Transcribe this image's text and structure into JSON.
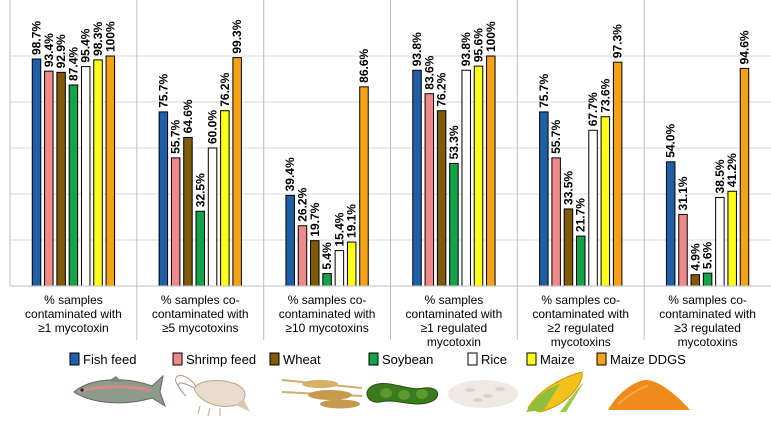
{
  "chart_data": {
    "type": "bar",
    "title": "",
    "xlabel": "",
    "ylabel": "",
    "ylim": [
      0,
      100
    ],
    "grid": true,
    "legend_position": "bottom",
    "categories": [
      [
        "% samples",
        "contaminated with",
        "≥1 mycotoxin"
      ],
      [
        "% samples co-",
        "contaminated with",
        "≥5 mycotoxins"
      ],
      [
        "% samples co-",
        "contaminated with",
        "≥10 mycotoxins"
      ],
      [
        "% samples",
        "contaminated with",
        "≥1 regulated",
        "mycotoxin"
      ],
      [
        "% samples co-",
        "contaminated with",
        "≥2 regulated",
        "mycotoxins"
      ],
      [
        "% samples co-",
        "contaminated with",
        "≥3 regulated",
        "mycotoxins"
      ]
    ],
    "series": [
      {
        "name": "Fish feed",
        "color": "#1f5fa8",
        "values": [
          98.7,
          75.7,
          39.4,
          93.8,
          75.7,
          54.0
        ],
        "labels": [
          "98.7%",
          "75.7%",
          "39.4%",
          "93.8%",
          "75.7%",
          "54.0%"
        ]
      },
      {
        "name": "Shrimp feed",
        "color": "#f08a8a",
        "values": [
          93.4,
          55.7,
          26.2,
          83.6,
          55.7,
          31.1
        ],
        "labels": [
          "93.4%",
          "55.7%",
          "26.2%",
          "83.6%",
          "55.7%",
          "31.1%"
        ]
      },
      {
        "name": "Wheat",
        "color": "#7f5a0a",
        "values": [
          92.9,
          64.6,
          19.7,
          76.2,
          33.5,
          4.9
        ],
        "labels": [
          "92.9%",
          "64.6%",
          "19.7%",
          "76.2%",
          "33.5%",
          "4.9%"
        ]
      },
      {
        "name": "Soybean",
        "color": "#15a34a",
        "values": [
          87.4,
          32.5,
          5.4,
          53.3,
          21.7,
          5.6
        ],
        "labels": [
          "87.4%",
          "32.5%",
          "5.4%",
          "53.3%",
          "21.7%",
          "5.6%"
        ]
      },
      {
        "name": "Rice",
        "color": "#ffffff",
        "values": [
          95.4,
          60.0,
          15.4,
          93.8,
          67.7,
          38.5
        ],
        "labels": [
          "95.4%",
          "60.0%",
          "15.4%",
          "93.8%",
          "67.7%",
          "38.5%"
        ]
      },
      {
        "name": "Maize",
        "color": "#ffff1a",
        "values": [
          98.3,
          76.2,
          19.1,
          95.6,
          73.6,
          41.2
        ],
        "labels": [
          "98.3%",
          "76.2%",
          "19.1%",
          "95.6%",
          "73.6%",
          "41.2%"
        ]
      },
      {
        "name": "Maize DDGS",
        "color": "#f5a316",
        "values": [
          100,
          99.3,
          86.6,
          100,
          97.3,
          94.6
        ],
        "labels": [
          "100%",
          "99.3%",
          "86.6%",
          "100%",
          "97.3%",
          "94.6%"
        ]
      }
    ]
  },
  "legend_pictures": [
    "fish-picture",
    "shrimp-picture",
    "wheat-picture",
    "soybean-picture",
    "rice-picture",
    "maize-picture",
    "ddgs-powder-picture"
  ]
}
